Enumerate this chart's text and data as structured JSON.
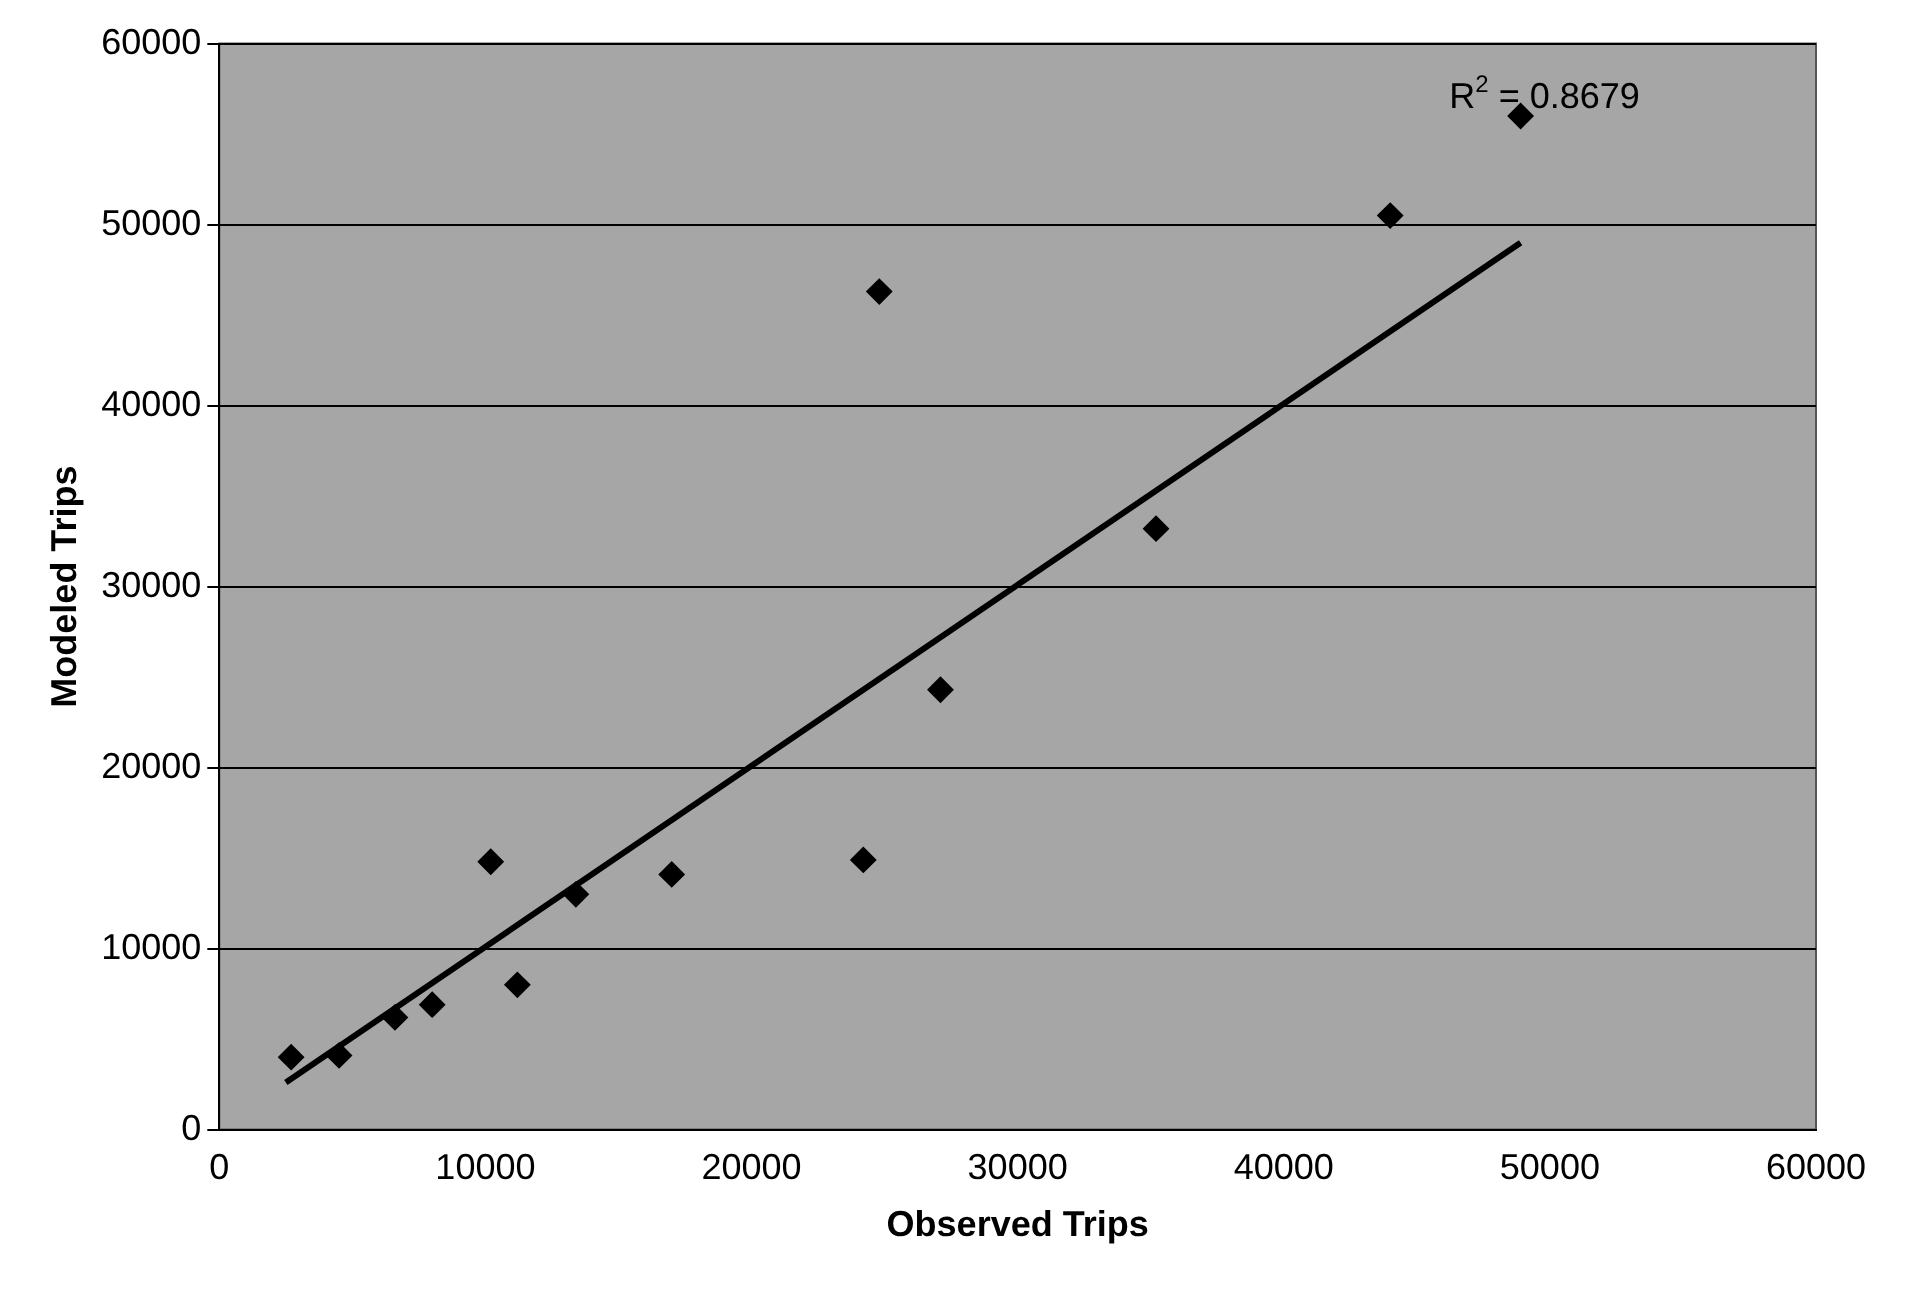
{
  "chart_data": {
    "type": "scatter",
    "xlabel": "Observed Trips",
    "ylabel": "Modeled Trips",
    "xlim": [
      0,
      60000
    ],
    "ylim": [
      0,
      60000
    ],
    "xticks": [
      0,
      10000,
      20000,
      30000,
      40000,
      50000,
      60000
    ],
    "yticks": [
      0,
      10000,
      20000,
      30000,
      40000,
      50000,
      60000
    ],
    "grid": "y",
    "legend": false,
    "series": [
      {
        "color": "#000000",
        "marker": "diamond",
        "x": [
          2700,
          4500,
          6600,
          8000,
          10200,
          11200,
          13400,
          17000,
          24200,
          24800,
          27100,
          35200,
          44000,
          48900
        ],
        "values": [
          4000,
          4100,
          6200,
          6900,
          14800,
          8000,
          13000,
          14100,
          14900,
          46300,
          24300,
          33200,
          50500,
          56000
        ]
      },
      {
        "type": "line",
        "color": "#000000",
        "marker": "none",
        "x": [
          2500,
          48900
        ],
        "values": [
          2600,
          49000
        ]
      }
    ],
    "annotations": [
      "R$^{2}$ = 0.8679"
    ]
  }
}
